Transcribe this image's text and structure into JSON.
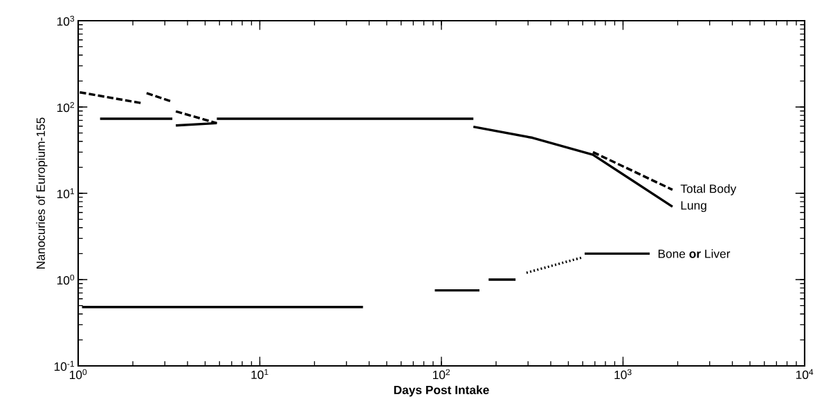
{
  "chart_data": {
    "type": "line",
    "xlabel": "Days Post Intake",
    "ylabel": "Nanocuries of Europium-155",
    "log": "xy",
    "xlim": [
      1,
      10000
    ],
    "ylim": [
      0.1,
      1000
    ],
    "xticks": [
      {
        "value": 1,
        "label": "10$^{0}$"
      },
      {
        "value": 10,
        "label": "10$^{1}$"
      },
      {
        "value": 100,
        "label": "10$^{2}$"
      },
      {
        "value": 1000,
        "label": "10$^{3}$"
      },
      {
        "value": 10000,
        "label": "10$^{4}$"
      }
    ],
    "yticks": [
      {
        "value": 0.1,
        "label": "10$^{-1}$"
      },
      {
        "value": 1,
        "label": "10$^{0}$"
      },
      {
        "value": 10,
        "label": "10$^{1}$"
      },
      {
        "value": 100,
        "label": "10$^{2}$"
      },
      {
        "value": 1000,
        "label": "10$^{3}$"
      }
    ],
    "series": [
      {
        "color": "#000000",
        "line_style": "solid",
        "x": [
          1.32,
          3.3
        ],
        "values": [
          73,
          73
        ]
      },
      {
        "color": "#000000",
        "line_style": "solid",
        "x": [
          3.45,
          5.8
        ],
        "values": [
          61,
          65
        ]
      },
      {
        "color": "#000000",
        "line_style": "solid",
        "x": [
          5.8,
          150
        ],
        "values": [
          73,
          73
        ]
      },
      {
        "name": "Lung",
        "color": "#000000",
        "line_style": "solid",
        "x": [
          150,
          317,
          683,
          1872
        ],
        "values": [
          59,
          44,
          28,
          7
        ]
      },
      {
        "color": "#000000",
        "line_style": "dashed",
        "x": [
          1.02,
          2.28
        ],
        "values": [
          148,
          110
        ]
      },
      {
        "color": "#000000",
        "line_style": "dashed",
        "x": [
          2.38,
          3.3
        ],
        "values": [
          145,
          115
        ]
      },
      {
        "color": "#000000",
        "line_style": "dashed",
        "x": [
          3.45,
          5.8
        ],
        "values": [
          89,
          65
        ]
      },
      {
        "name": "Total Body",
        "color": "#000000",
        "line_style": "dashed",
        "x": [
          683,
          1872
        ],
        "values": [
          30,
          11
        ]
      },
      {
        "color": "#000000",
        "line_style": "solid",
        "x": [
          1.05,
          37
        ],
        "values": [
          0.48,
          0.48
        ]
      },
      {
        "color": "#000000",
        "line_style": "solid",
        "x": [
          92,
          162
        ],
        "values": [
          0.75,
          0.75
        ]
      },
      {
        "color": "#000000",
        "line_style": "solid",
        "x": [
          182,
          256
        ],
        "values": [
          1.0,
          1.0
        ]
      },
      {
        "color": "#000000",
        "line_style": "dotted",
        "x": [
          294,
          593
        ],
        "values": [
          1.2,
          1.8
        ]
      },
      {
        "name": "Bone **or** Liver",
        "color": "#000000",
        "line_style": "solid",
        "x": [
          615,
          1403
        ],
        "values": [
          2.0,
          2.0
        ]
      }
    ]
  }
}
